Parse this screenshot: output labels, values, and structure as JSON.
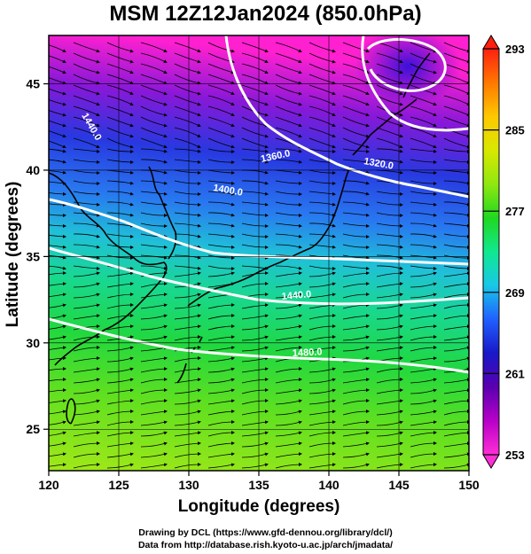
{
  "title": "MSM 12Z12Jan2024 (850.0hPa)",
  "x_axis": {
    "label": "Longitude (degrees)",
    "ticks": [
      "120",
      "125",
      "130",
      "135",
      "140",
      "145",
      "150"
    ],
    "range": [
      120,
      150
    ]
  },
  "y_axis": {
    "label": "Latitude  (degrees)",
    "ticks": [
      "25",
      "30",
      "35",
      "40",
      "45"
    ],
    "range": [
      22.6,
      47.8
    ]
  },
  "colorbar": {
    "ticks": [
      "253",
      "261",
      "269",
      "277",
      "285",
      "293"
    ],
    "range": [
      253,
      293
    ],
    "colors": [
      "#ff2fd6",
      "#b800c8",
      "#5a00b0",
      "#1818c8",
      "#2060ff",
      "#18c8e8",
      "#10e890",
      "#20d820",
      "#90e810",
      "#d8e800",
      "#ffc800",
      "#ff7800",
      "#ff2010"
    ]
  },
  "contours": [
    {
      "value": "1320.0",
      "label": "1320.0"
    },
    {
      "value": "1360.0",
      "label": "1360.0"
    },
    {
      "value": "1400.0",
      "label": "1400.0"
    },
    {
      "value": "1440.0",
      "label": "1440.0"
    },
    {
      "value": "1480.0",
      "label": "1480.0"
    }
  ],
  "field": "temperature (K) shaded, geopotential height contours, wind streamlines",
  "credits": [
    "Drawing by DCL (https://www.gfd-dennou.org/library/dcl/)",
    "Data from http://database.rish.kyoto-u.ac.jp/arch/jmadata/"
  ],
  "colors": {
    "contour": "#ffffff",
    "frame": "#000000",
    "streamline": "#000000",
    "coast": "#000000"
  }
}
